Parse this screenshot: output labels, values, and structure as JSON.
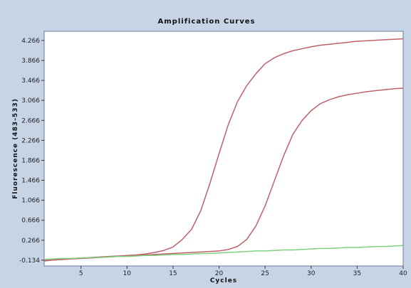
{
  "chart_data": {
    "type": "line",
    "title": "Amplification Curves",
    "xlabel": "Cycles",
    "ylabel": "Fluorescence (483-533)",
    "xlim": [
      1,
      40
    ],
    "ylim": [
      -0.25,
      4.45
    ],
    "x_ticks": [
      "5",
      "10",
      "15",
      "20",
      "25",
      "30",
      "35",
      "40"
    ],
    "x_tick_values": [
      5,
      10,
      15,
      20,
      25,
      30,
      35,
      40
    ],
    "y_ticks": [
      "-0.134",
      "0.266",
      "0.666",
      "1.066",
      "1.466",
      "1.866",
      "2.266",
      "2.666",
      "3.066",
      "3.466",
      "3.866",
      "4.266"
    ],
    "y_tick_values": [
      -0.134,
      0.266,
      0.666,
      1.066,
      1.466,
      1.866,
      2.266,
      2.666,
      3.066,
      3.466,
      3.866,
      4.266
    ],
    "grid": false,
    "legend": "none",
    "x": [
      1,
      2,
      3,
      4,
      5,
      6,
      7,
      8,
      9,
      10,
      11,
      12,
      13,
      14,
      15,
      16,
      17,
      18,
      19,
      20,
      21,
      22,
      23,
      24,
      25,
      26,
      27,
      28,
      29,
      30,
      31,
      32,
      33,
      34,
      35,
      36,
      37,
      38,
      39,
      40
    ],
    "series": [
      {
        "color": "#c0606a",
        "values": [
          -0.15,
          -0.13,
          -0.12,
          -0.1,
          -0.09,
          -0.08,
          -0.07,
          -0.06,
          -0.05,
          -0.04,
          -0.03,
          -0.01,
          0.02,
          0.06,
          0.13,
          0.28,
          0.48,
          0.85,
          1.4,
          2.0,
          2.58,
          3.04,
          3.36,
          3.6,
          3.8,
          3.92,
          4.0,
          4.06,
          4.1,
          4.14,
          4.17,
          4.19,
          4.21,
          4.23,
          4.25,
          4.26,
          4.27,
          4.28,
          4.29,
          4.3
        ]
      },
      {
        "color": "#c0606a",
        "values": [
          -0.14,
          -0.13,
          -0.12,
          -0.11,
          -0.1,
          -0.09,
          -0.08,
          -0.07,
          -0.06,
          -0.05,
          -0.04,
          -0.03,
          -0.02,
          -0.01,
          0.0,
          0.01,
          0.02,
          0.03,
          0.04,
          0.05,
          0.08,
          0.14,
          0.28,
          0.55,
          0.95,
          1.45,
          1.95,
          2.38,
          2.66,
          2.86,
          3.0,
          3.08,
          3.14,
          3.18,
          3.21,
          3.24,
          3.26,
          3.28,
          3.3,
          3.31
        ]
      },
      {
        "color": "#7fd07f",
        "values": [
          -0.12,
          -0.11,
          -0.1,
          -0.1,
          -0.09,
          -0.08,
          -0.08,
          -0.07,
          -0.06,
          -0.06,
          -0.05,
          -0.04,
          -0.04,
          -0.03,
          -0.02,
          -0.02,
          -0.01,
          0.0,
          0.0,
          0.01,
          0.02,
          0.03,
          0.04,
          0.05,
          0.05,
          0.06,
          0.07,
          0.07,
          0.08,
          0.09,
          0.1,
          0.1,
          0.11,
          0.12,
          0.12,
          0.13,
          0.14,
          0.14,
          0.15,
          0.16
        ]
      }
    ]
  }
}
